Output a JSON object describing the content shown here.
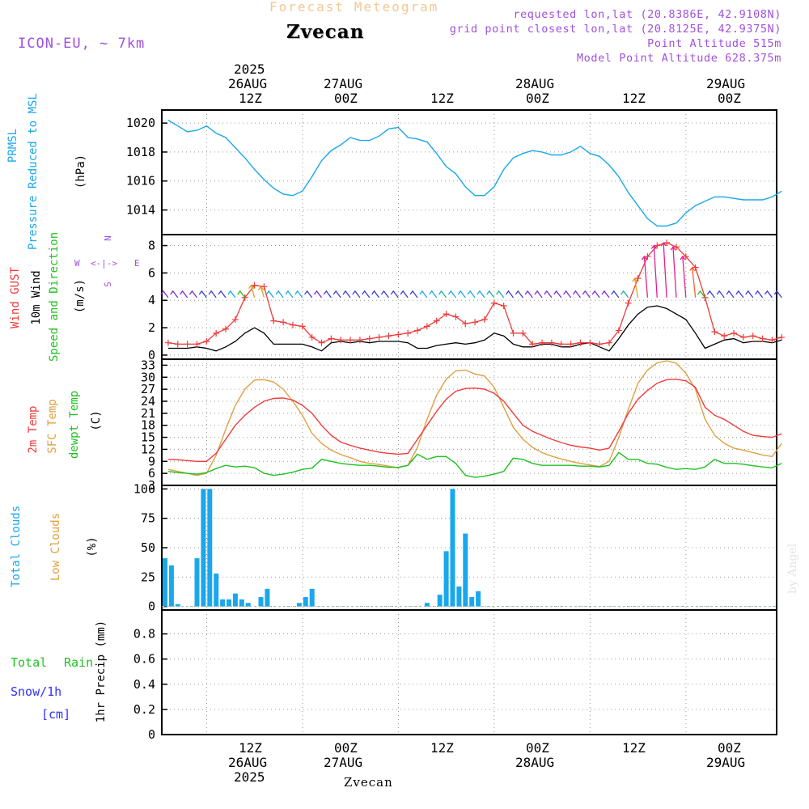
{
  "header": {
    "product": "Forecast Meteogram",
    "model": "ICON-EU, ~ 7km",
    "location": "Zvecan",
    "requested": "requested lon,lat (20.8386E, 42.9108N)",
    "gridpoint": "grid point closest lon,lat (20.8125E, 42.9375N)",
    "point_alt": "Point Altitude 515m",
    "model_alt": "Model Point Altitude 628.375m",
    "footer_location": "Zvecan",
    "credit": "by Angel"
  },
  "time_axis": {
    "top_year": "2025",
    "top_days": [
      "26AUG",
      "27AUG",
      "",
      "28AUG",
      "",
      "29AUG"
    ],
    "top_hours": [
      "12Z",
      "00Z",
      "12Z",
      "00Z",
      "12Z",
      "00Z"
    ],
    "bottom_hours": [
      "12Z",
      "00Z",
      "12Z",
      "00Z",
      "12Z",
      "00Z"
    ],
    "bottom_days": [
      "26AUG",
      "27AUG",
      "",
      "28AUG",
      "",
      "29AUG"
    ],
    "bottom_year": "2025"
  },
  "panel_labels": {
    "pressure": {
      "name1": "PRMSL",
      "name2": "Pressure Reduced to MSL",
      "unit": "(hPa)"
    },
    "wind": {
      "gust": "Wind GUST",
      "wind": "10m Wind",
      "dir": "Speed and Direction",
      "unit": "(m/s)",
      "compass": {
        "n": "N",
        "s": "S",
        "w": "W",
        "e": "E",
        "mid": "<-|->"
      }
    },
    "temp": {
      "t2m": "2m Temp",
      "tsfc": "SFC Temp",
      "dewpt": "dewpt Temp",
      "unit": "(C)"
    },
    "clouds": {
      "total": "Total Clouds",
      "low": "Low Clouds",
      "unit": "(%)"
    },
    "precip": {
      "rain_a": "Total",
      "rain_b": "Rain",
      "snow": "Snow/1h",
      "snow_unit": "[cm]",
      "unit": "1hr Precip (mm)"
    }
  },
  "colors": {
    "pressure": "#1aa7ec",
    "gust": "#ef3b3b",
    "wind": "#000000",
    "t2m": "#ef3b3b",
    "tsfc": "#e0a040",
    "dewpt": "#20c020",
    "clouds": "#1aa7ec",
    "rain": "#20c020",
    "snow": "#3030ff",
    "purple": "#a050e0",
    "orange_title": "#f0c890"
  },
  "chart_data": [
    {
      "type": "line",
      "panel": "pressure",
      "xlabel": "",
      "ylabel": "(hPa)",
      "ylim": [
        1012.3,
        1020.9
      ],
      "yticks": [
        1014,
        1016,
        1018,
        1020
      ],
      "x_hours_since_start": [
        0,
        3,
        6,
        9,
        12,
        15,
        18,
        21,
        24,
        27,
        30,
        33,
        36,
        39,
        42,
        45,
        48,
        51,
        54,
        57,
        60,
        63,
        66,
        69,
        72,
        75,
        78,
        81,
        84,
        87,
        90,
        93,
        96,
        99,
        102,
        105,
        108,
        111,
        114,
        117,
        120,
        123,
        126,
        129,
        132,
        135,
        138,
        141,
        144,
        147,
        150,
        153,
        156,
        159,
        162,
        165,
        168,
        171,
        174,
        177,
        180,
        183,
        186,
        189,
        192
      ],
      "series": [
        {
          "values": [
            1020.2,
            1019.8,
            1019.4,
            1019.5,
            1019.8,
            1019.3,
            1019.0,
            1018.3,
            1017.6,
            1016.8,
            1016.1,
            1015.5,
            1015.1,
            1015.0,
            1015.3,
            1016.3,
            1017.4,
            1018.1,
            1018.5,
            1019.0,
            1018.8,
            1018.8,
            1019.1,
            1019.6,
            1019.7,
            1019.0,
            1018.9,
            1018.7,
            1017.9,
            1017.0,
            1016.5,
            1015.6,
            1015.0,
            1015.0,
            1015.6,
            1016.8,
            1017.6,
            1017.9,
            1018.1,
            1018.0,
            1017.8,
            1017.8,
            1018.0,
            1018.4,
            1017.9,
            1017.7,
            1017.1,
            1016.3,
            1015.2,
            1014.3,
            1013.4,
            1012.9,
            1012.9,
            1013.1,
            1013.8,
            1014.3,
            1014.6,
            1014.9,
            1014.9,
            1014.8,
            1014.7,
            1014.7,
            1014.7,
            1014.9,
            1015.3
          ]
        }
      ]
    },
    {
      "type": "line",
      "panel": "wind",
      "ylabel": "(m/s)",
      "ylim": [
        -0.3,
        8.8
      ],
      "yticks": [
        0,
        2,
        4,
        6,
        8
      ],
      "x_hours_since_start": [
        0,
        3,
        6,
        9,
        12,
        15,
        18,
        21,
        24,
        27,
        30,
        33,
        36,
        39,
        42,
        45,
        48,
        51,
        54,
        57,
        60,
        63,
        66,
        69,
        72,
        75,
        78,
        81,
        84,
        87,
        90,
        93,
        96,
        99,
        102,
        105,
        108,
        111,
        114,
        117,
        120,
        123,
        126,
        129,
        132,
        135,
        138,
        141,
        144,
        147,
        150,
        153,
        156,
        159,
        162,
        165,
        168,
        171,
        174,
        177,
        180,
        183,
        186,
        189,
        192
      ],
      "series": [
        {
          "name": "Wind GUST",
          "values": [
            0.9,
            0.8,
            0.8,
            0.8,
            1.0,
            1.6,
            1.9,
            2.6,
            4.2,
            5.1,
            5.0,
            2.5,
            2.4,
            2.2,
            2.1,
            1.3,
            0.9,
            1.2,
            1.1,
            1.1,
            1.1,
            1.2,
            1.3,
            1.4,
            1.5,
            1.6,
            1.8,
            2.1,
            2.5,
            3.0,
            2.8,
            2.3,
            2.4,
            2.6,
            3.8,
            3.6,
            1.6,
            1.6,
            0.8,
            0.9,
            0.9,
            0.8,
            0.8,
            0.9,
            0.9,
            0.8,
            0.9,
            1.8,
            3.8,
            5.6,
            7.2,
            8.0,
            8.2,
            7.9,
            7.2,
            6.4,
            4.2,
            1.7,
            1.4,
            1.6,
            1.3,
            1.4,
            1.2,
            1.1,
            1.3
          ]
        },
        {
          "name": "10m Wind",
          "values": [
            0.5,
            0.5,
            0.5,
            0.6,
            0.5,
            0.3,
            0.6,
            1.0,
            1.6,
            2.0,
            1.6,
            0.8,
            0.8,
            0.8,
            0.8,
            0.6,
            0.3,
            0.9,
            1.0,
            0.9,
            1.0,
            0.9,
            1.0,
            1.0,
            1.0,
            0.9,
            0.5,
            0.5,
            0.7,
            0.8,
            0.9,
            0.8,
            0.9,
            1.1,
            1.6,
            1.4,
            0.8,
            0.6,
            0.6,
            0.8,
            0.8,
            0.6,
            0.6,
            0.8,
            0.9,
            0.6,
            0.3,
            1.2,
            2.2,
            3.0,
            3.5,
            3.6,
            3.4,
            3.0,
            2.6,
            1.6,
            0.5,
            0.8,
            1.1,
            1.2,
            0.9,
            1.0,
            1.0,
            0.9,
            1.1
          ]
        }
      ]
    },
    {
      "type": "line",
      "panel": "temperature",
      "ylabel": "(C)",
      "ylim": [
        3,
        34.5
      ],
      "yticks": [
        3,
        6,
        9,
        12,
        15,
        18,
        21,
        24,
        27,
        30,
        33
      ],
      "x_hours_since_start": [
        0,
        3,
        6,
        9,
        12,
        15,
        18,
        21,
        24,
        27,
        30,
        33,
        36,
        39,
        42,
        45,
        48,
        51,
        54,
        57,
        60,
        63,
        66,
        69,
        72,
        75,
        78,
        81,
        84,
        87,
        90,
        93,
        96,
        99,
        102,
        105,
        108,
        111,
        114,
        117,
        120,
        123,
        126,
        129,
        132,
        135,
        138,
        141,
        144,
        147,
        150,
        153,
        156,
        159,
        162,
        165,
        168,
        171,
        174,
        177,
        180,
        183,
        186,
        189,
        192
      ],
      "series": [
        {
          "name": "2m Temp",
          "values": [
            9.5,
            9.4,
            9.2,
            9.0,
            9.0,
            11.0,
            14.5,
            18.0,
            20.5,
            22.5,
            24.0,
            24.7,
            24.8,
            24.3,
            23.0,
            21.0,
            18.0,
            15.5,
            13.8,
            13.0,
            12.3,
            11.8,
            11.3,
            11.0,
            10.8,
            11.0,
            14.5,
            18.0,
            21.5,
            24.5,
            26.5,
            27.2,
            27.3,
            27.0,
            26.0,
            24.0,
            21.0,
            18.0,
            16.5,
            15.5,
            14.5,
            13.7,
            13.0,
            12.6,
            12.3,
            11.8,
            12.3,
            16.5,
            21.0,
            24.5,
            26.7,
            28.5,
            29.4,
            29.5,
            29.1,
            27.5,
            22.5,
            20.5,
            19.5,
            18.0,
            16.5,
            15.5,
            15.2,
            15.0,
            15.9
          ]
        },
        {
          "name": "SFC Temp",
          "values": [
            7.0,
            6.5,
            6.0,
            5.5,
            6.0,
            10.5,
            17.0,
            23.0,
            27.0,
            29.3,
            29.4,
            28.8,
            27.0,
            24.0,
            20.5,
            16.0,
            13.5,
            11.8,
            10.7,
            9.9,
            9.0,
            8.5,
            8.2,
            7.8,
            7.4,
            8.0,
            12.5,
            19.5,
            25.5,
            29.5,
            31.6,
            31.8,
            30.8,
            30.3,
            27.5,
            22.5,
            17.5,
            14.5,
            12.5,
            11.2,
            10.3,
            9.6,
            9.0,
            8.5,
            8.1,
            7.7,
            9.0,
            15.0,
            22.0,
            28.5,
            31.8,
            33.6,
            34.1,
            33.5,
            31.0,
            27.0,
            19.5,
            15.5,
            13.5,
            12.3,
            11.8,
            11.2,
            10.6,
            10.2,
            13.5
          ]
        },
        {
          "name": "dewpt Temp",
          "values": [
            6.5,
            6.2,
            6.0,
            5.8,
            6.2,
            7.2,
            8.0,
            7.6,
            7.8,
            7.4,
            6.0,
            5.5,
            5.8,
            6.3,
            7.0,
            7.3,
            9.5,
            9.0,
            8.5,
            8.2,
            8.0,
            8.0,
            7.8,
            7.5,
            7.5,
            8.0,
            10.8,
            9.5,
            10.2,
            10.2,
            8.5,
            5.5,
            5.0,
            5.3,
            5.8,
            6.5,
            9.8,
            9.5,
            8.5,
            8.0,
            8.0,
            8.0,
            8.0,
            7.8,
            7.8,
            7.6,
            8.0,
            11.2,
            9.5,
            9.5,
            8.5,
            8.3,
            7.5,
            7.0,
            7.2,
            7.0,
            7.6,
            9.5,
            8.5,
            8.5,
            8.3,
            7.9,
            7.6,
            7.4,
            8.5
          ]
        }
      ]
    },
    {
      "type": "bar",
      "panel": "clouds",
      "ylabel": "(%)",
      "ylim": [
        -3,
        103
      ],
      "yticks": [
        0,
        25,
        50,
        75,
        100
      ],
      "x_hours_since_start": [
        0,
        2,
        4,
        6,
        8,
        10,
        12,
        14,
        16,
        18,
        20,
        22,
        24,
        26,
        28,
        30,
        32,
        34,
        36,
        38,
        40,
        42,
        44,
        46,
        48,
        50,
        52,
        54,
        56,
        58,
        60,
        62,
        64,
        66,
        68,
        70,
        72,
        74,
        76,
        78,
        80,
        82,
        84,
        86,
        88,
        90,
        92,
        94,
        96,
        98,
        100,
        102,
        104,
        106,
        108,
        110,
        112,
        114,
        116,
        118,
        120,
        122,
        124,
        126,
        128,
        130,
        132,
        134,
        136,
        138,
        140,
        142,
        144,
        146,
        148,
        150,
        152,
        154,
        156,
        158,
        160,
        162,
        164,
        166,
        168,
        170,
        172,
        174,
        176,
        178,
        180,
        182,
        184,
        186,
        188,
        190
      ],
      "series": [
        {
          "name": "Total Clouds",
          "values": [
            41,
            35,
            2,
            0,
            0,
            41,
            100,
            100,
            28,
            6,
            6,
            11,
            6,
            3,
            0,
            8,
            15,
            0,
            0,
            0,
            0,
            3,
            8,
            15,
            0,
            0,
            0,
            0,
            0,
            0,
            0,
            0,
            0,
            0,
            0,
            0,
            0,
            0,
            0,
            0,
            0,
            3,
            0,
            10,
            47,
            100,
            17,
            62,
            8,
            13,
            0,
            0,
            0,
            0,
            0,
            0,
            0,
            0,
            0,
            0,
            0,
            0,
            0,
            0,
            0,
            0,
            0,
            0,
            0,
            0,
            0,
            0,
            0,
            0,
            0,
            0,
            0,
            0,
            0,
            0,
            0,
            0,
            0,
            0,
            0,
            0,
            0,
            0,
            0,
            0,
            0,
            0,
            0,
            0,
            0,
            0
          ]
        },
        {
          "name": "Low Clouds",
          "values": [
            0,
            0,
            0,
            0,
            0,
            0,
            0,
            0,
            0,
            0,
            0,
            0,
            0,
            0,
            0,
            0,
            0,
            0,
            0,
            0,
            0,
            0,
            0,
            0,
            0,
            0,
            0,
            0,
            0,
            0,
            0,
            0,
            0,
            0,
            0,
            0,
            0,
            0,
            0,
            0,
            0,
            0,
            0,
            0,
            0,
            0,
            0,
            0,
            0,
            0,
            0,
            0,
            0,
            0,
            0,
            0,
            0,
            0,
            0,
            0,
            0,
            0,
            0,
            0,
            0,
            0,
            0,
            0,
            0,
            0,
            0,
            0,
            0,
            0,
            0,
            0,
            0,
            0,
            0,
            0,
            0,
            0,
            0,
            0,
            0,
            0,
            0,
            0,
            0,
            0,
            0,
            0,
            0,
            0,
            0,
            0
          ]
        }
      ]
    },
    {
      "type": "bar",
      "panel": "precip",
      "ylabel": "1hr Precip (mm)",
      "ylim": [
        0,
        0.99
      ],
      "yticks": [
        0,
        0.2,
        0.4,
        0.6,
        0.8
      ],
      "series": [
        {
          "name": "Total Rain",
          "values": []
        },
        {
          "name": "Snow/1h",
          "values": []
        }
      ]
    }
  ]
}
